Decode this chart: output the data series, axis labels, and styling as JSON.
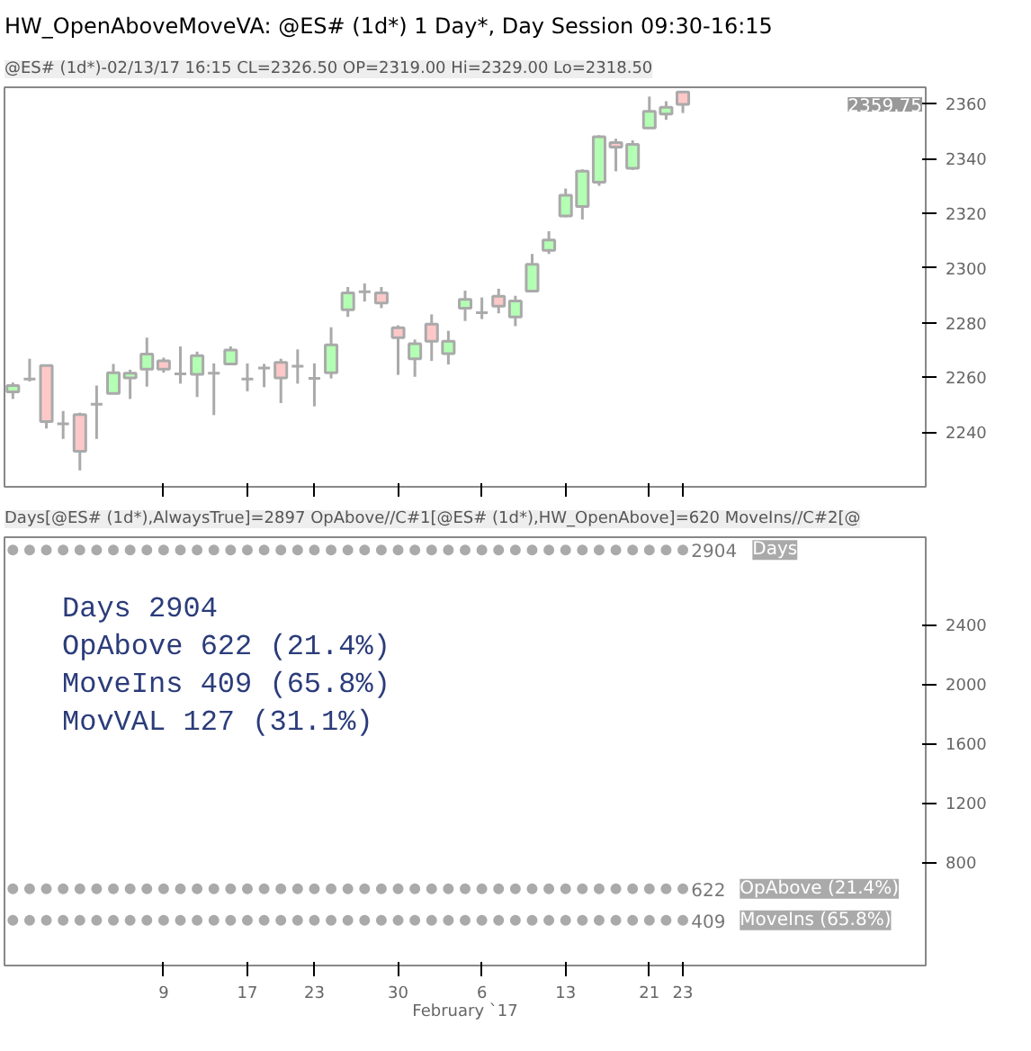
{
  "chart_data": [
    {
      "type": "candlestick",
      "title": "HW_OpenAboveMoveVA: @ES# (1d*) 1 Day*, Day Session 09:30-16:15",
      "subtitle": "@ES# (1d*)-02/13/17 16:15 CL=2326.50 OP=2319.00 Hi=2329.00 Lo=2318.50",
      "categories": [
        null,
        null,
        null,
        null,
        null,
        null,
        null,
        null,
        null,
        "9",
        null,
        null,
        null,
        null,
        "17",
        null,
        null,
        null,
        "23",
        null,
        null,
        null,
        null,
        "30",
        null,
        null,
        null,
        null,
        "6",
        null,
        null,
        null,
        null,
        "13",
        null,
        null,
        null,
        null,
        "21",
        null,
        "23",
        null,
        null,
        null,
        null,
        null,
        null,
        null,
        null,
        null,
        null,
        null,
        null,
        null,
        null
      ],
      "ohlc": [
        [
          2254.7,
          2258.1,
          2252.1,
          2257.0
        ],
        [
          2259.4,
          2266.8,
          2258.5,
          2259.4
        ],
        [
          2264.3,
          2264.3,
          2241.3,
          2243.8
        ],
        [
          2243.0,
          2247.7,
          2237.5,
          2243.0
        ],
        [
          2246.4,
          2247.1,
          2226.0,
          2233.0
        ],
        [
          2250.2,
          2257.0,
          2237.5,
          2250.2
        ],
        [
          2254.1,
          2264.9,
          2254.1,
          2261.7
        ],
        [
          2259.8,
          2262.8,
          2252.1,
          2261.5
        ],
        [
          2263.0,
          2274.5,
          2256.6,
          2268.5
        ],
        [
          2266.0,
          2267.2,
          2261.7,
          2263.0
        ],
        [
          2261.3,
          2271.3,
          2257.7,
          2261.3
        ],
        [
          2261.1,
          2269.4,
          2252.8,
          2267.9
        ],
        [
          2261.5,
          2265.1,
          2246.2,
          2261.5
        ],
        [
          2264.9,
          2271.3,
          2264.5,
          2270.0
        ],
        [
          2259.4,
          2265.1,
          2254.9,
          2259.4
        ],
        [
          2263.4,
          2264.9,
          2256.4,
          2263.4
        ],
        [
          2265.5,
          2266.8,
          2250.6,
          2259.8
        ],
        [
          2264.1,
          2270.2,
          2257.7,
          2264.1
        ],
        [
          2259.6,
          2265.1,
          2249.4,
          2259.6
        ],
        [
          2261.7,
          2278.3,
          2259.6,
          2271.9
        ],
        [
          2284.7,
          2293.0,
          2282.1,
          2290.9
        ],
        [
          2291.3,
          2294.3,
          2287.7,
          2291.3
        ],
        [
          2290.9,
          2293.0,
          2285.3,
          2287.2
        ],
        [
          2278.1,
          2279.0,
          2260.9,
          2274.5
        ],
        [
          2266.8,
          2273.8,
          2260.2,
          2272.3
        ],
        [
          2279.4,
          2283.0,
          2266.0,
          2273.2
        ],
        [
          2268.7,
          2277.0,
          2264.7,
          2273.2
        ],
        [
          2285.3,
          2291.7,
          2280.6,
          2288.5
        ],
        [
          2283.6,
          2289.2,
          2281.3,
          2283.6
        ],
        [
          2289.6,
          2292.4,
          2283.4,
          2286.0
        ],
        [
          2282.1,
          2289.8,
          2278.7,
          2287.9
        ],
        [
          2291.5,
          2305.1,
          2291.1,
          2301.3
        ],
        [
          2306.4,
          2313.4,
          2305.1,
          2310.2
        ],
        [
          2319.0,
          2329.0,
          2318.5,
          2326.5
        ],
        [
          2322.4,
          2336.0,
          2317.7,
          2335.3
        ],
        [
          2331.3,
          2348.5,
          2330.0,
          2347.9
        ],
        [
          2345.8,
          2347.2,
          2335.3,
          2344.1
        ],
        [
          2336.4,
          2346.6,
          2335.8,
          2345.1
        ],
        [
          2351.1,
          2362.6,
          2351.1,
          2357.2
        ],
        [
          2356.2,
          2360.9,
          2354.1,
          2358.7
        ],
        [
          2364.3,
          2364.7,
          2356.6,
          2359.75
        ],
        null,
        null,
        null,
        null,
        null,
        null,
        null,
        null,
        null,
        null,
        null,
        null,
        null,
        null
      ],
      "colors": [
        "#b3ffb3",
        "#aaaaaa",
        "#ffc8c8",
        "#aaaaaa",
        "#ffc8c8",
        "#aaaaaa",
        "#b3ffb3",
        "#b3ffb3",
        "#b3ffb3",
        "#ffc8c8",
        "#aaaaaa",
        "#b3ffb3",
        "#aaaaaa",
        "#b3ffb3",
        "#aaaaaa",
        "#aaaaaa",
        "#ffc8c8",
        "#aaaaaa",
        "#aaaaaa",
        "#b3ffb3",
        "#b3ffb3",
        "#aaaaaa",
        "#ffc8c8",
        "#ffc8c8",
        "#b3ffb3",
        "#ffc8c8",
        "#b3ffb3",
        "#b3ffb3",
        "#aaaaaa",
        "#ffc8c8",
        "#b3ffb3",
        "#b3ffb3",
        "#b3ffb3",
        "#b3ffb3",
        "#b3ffb3",
        "#b3ffb3",
        "#ffc8c8",
        "#b3ffb3",
        "#b3ffb3",
        "#b3ffb3",
        "#ffc8c8",
        null,
        null,
        null,
        null,
        null,
        null,
        null,
        null,
        null,
        null,
        null,
        null,
        null,
        null
      ],
      "ylim": [
        2220,
        2366
      ],
      "yticks": [
        2240,
        2260,
        2280,
        2300,
        2320,
        2340,
        2360
      ],
      "tick_labels": "y",
      "grid": false,
      "annotations": [
        "2359.75"
      ]
    },
    {
      "type": "scatter",
      "subtitle": "Days[@ES# (1d*),AlwaysTrue]=2897 OpAbove//C#1[@ES# (1d*),HW_OpenAbove]=620 MoveIns//C#2[@",
      "xlabel": "February `17",
      "categories": [
        null,
        null,
        null,
        null,
        null,
        null,
        null,
        null,
        null,
        "9",
        null,
        null,
        null,
        null,
        "17",
        null,
        null,
        null,
        "23",
        null,
        null,
        null,
        null,
        "30",
        null,
        null,
        null,
        null,
        "6",
        null,
        null,
        null,
        null,
        "13",
        null,
        null,
        null,
        null,
        "21",
        null,
        "23",
        null,
        null,
        null,
        null,
        null,
        null,
        null,
        null,
        null,
        null,
        null,
        null,
        null,
        null
      ],
      "series": [
        {
          "name": "Days",
          "color": "#aaaaaa",
          "values": [
            2904,
            2904,
            2904,
            2904,
            2904,
            2904,
            2904,
            2904,
            2904,
            2904,
            2904,
            2904,
            2904,
            2904,
            2904,
            2904,
            2904,
            2904,
            2904,
            2904,
            2904,
            2904,
            2904,
            2904,
            2904,
            2904,
            2904,
            2904,
            2904,
            2904,
            2904,
            2904,
            2904,
            2904,
            2904,
            2904,
            2904,
            2904,
            2904,
            2904,
            2904,
            null,
            null,
            null,
            null,
            null,
            null,
            null,
            null,
            null,
            null,
            null,
            null,
            null,
            null
          ],
          "value_labels": [
            null,
            null,
            null,
            null,
            null,
            null,
            null,
            null,
            null,
            null,
            null,
            null,
            null,
            null,
            null,
            null,
            null,
            null,
            null,
            null,
            null,
            null,
            null,
            null,
            null,
            null,
            null,
            null,
            null,
            null,
            null,
            null,
            null,
            null,
            null,
            null,
            null,
            null,
            null,
            null,
            "2904",
            null,
            null,
            null,
            null,
            null,
            null,
            null,
            null,
            null,
            null,
            null,
            null,
            null,
            null
          ]
        },
        {
          "name": "OpAbove (21.4%)",
          "color": "#aaaaaa",
          "values": [
            622,
            622,
            622,
            622,
            622,
            622,
            622,
            622,
            622,
            622,
            622,
            622,
            622,
            622,
            622,
            622,
            622,
            622,
            622,
            622,
            622,
            622,
            622,
            622,
            622,
            622,
            622,
            622,
            622,
            622,
            622,
            622,
            622,
            622,
            622,
            622,
            622,
            622,
            622,
            622,
            622,
            null,
            null,
            null,
            null,
            null,
            null,
            null,
            null,
            null,
            null,
            null,
            null,
            null,
            null
          ],
          "value_labels": [
            null,
            null,
            null,
            null,
            null,
            null,
            null,
            null,
            null,
            null,
            null,
            null,
            null,
            null,
            null,
            null,
            null,
            null,
            null,
            null,
            null,
            null,
            null,
            null,
            null,
            null,
            null,
            null,
            null,
            null,
            null,
            null,
            null,
            null,
            null,
            null,
            null,
            null,
            null,
            null,
            "622",
            null,
            null,
            null,
            null,
            null,
            null,
            null,
            null,
            null,
            null,
            null,
            null,
            null,
            null
          ]
        },
        {
          "name": "MoveIns (65.8%)",
          "color": "#aaaaaa",
          "values": [
            409,
            409,
            409,
            409,
            409,
            409,
            409,
            409,
            409,
            409,
            409,
            409,
            409,
            409,
            409,
            409,
            409,
            409,
            409,
            409,
            409,
            409,
            409,
            409,
            409,
            409,
            409,
            409,
            409,
            409,
            409,
            409,
            409,
            409,
            409,
            409,
            409,
            409,
            409,
            409,
            409,
            null,
            null,
            null,
            null,
            null,
            null,
            null,
            null,
            null,
            null,
            null,
            null,
            null,
            null
          ],
          "value_labels": [
            null,
            null,
            null,
            null,
            null,
            null,
            null,
            null,
            null,
            null,
            null,
            null,
            null,
            null,
            null,
            null,
            null,
            null,
            null,
            null,
            null,
            null,
            null,
            null,
            null,
            null,
            null,
            null,
            null,
            null,
            null,
            null,
            null,
            null,
            null,
            null,
            null,
            null,
            null,
            null,
            "409",
            null,
            null,
            null,
            null,
            null,
            null,
            null,
            null,
            null,
            null,
            null,
            null,
            null,
            null
          ]
        }
      ],
      "marker": "circle",
      "ylim": [
        105,
        2990
      ],
      "yticks": [
        800,
        1200,
        1600,
        2000,
        2400
      ],
      "grid": false,
      "annotations": [
        "Days             2904",
        "OpAbove   622 (21.4%)",
        "MoveIns   409 (65.8%)",
        "MovVAL    127 (31.1%)"
      ]
    }
  ]
}
